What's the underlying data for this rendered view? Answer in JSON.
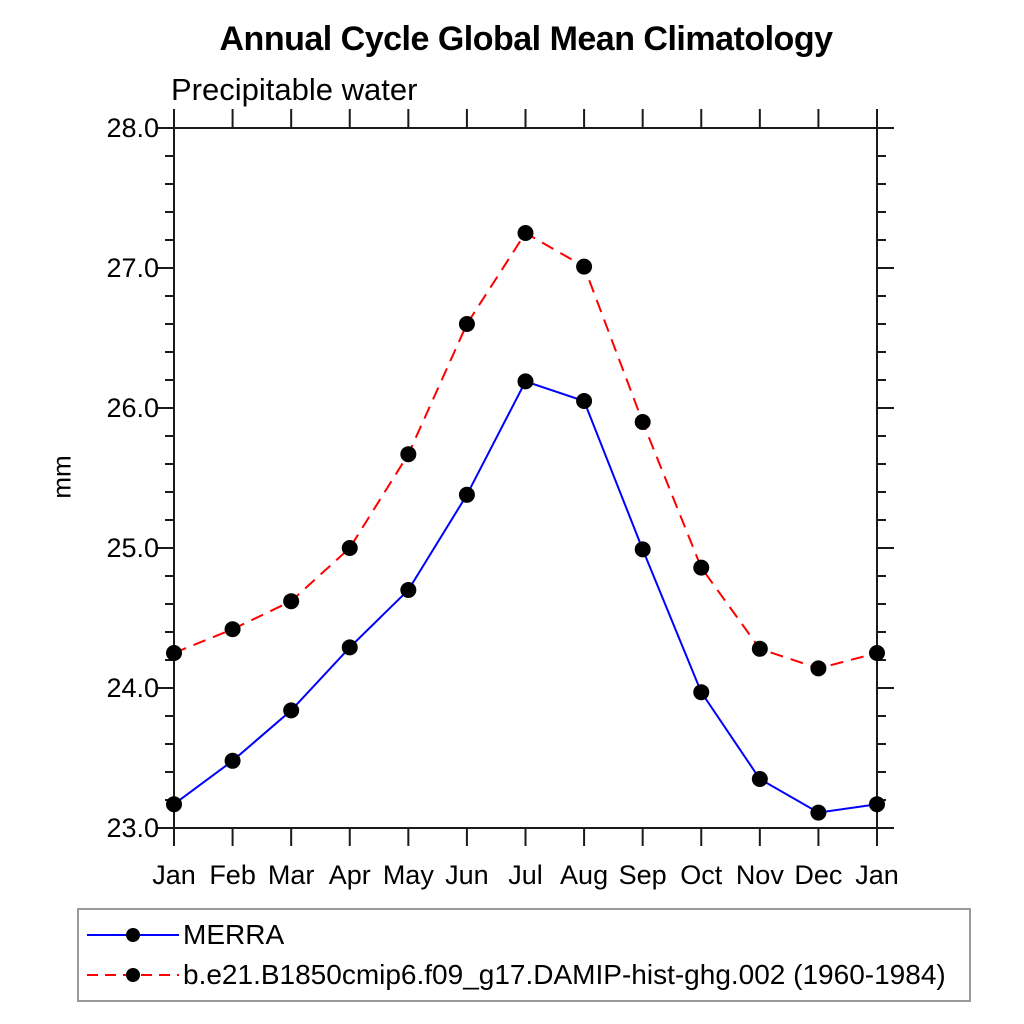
{
  "chart_data": {
    "type": "line",
    "title": "Annual Cycle Global Mean Climatology",
    "subtitle": "Precipitable water",
    "ylabel": "mm",
    "xlabel": "",
    "x_categories": [
      "Jan",
      "Feb",
      "Mar",
      "Apr",
      "May",
      "Jun",
      "Jul",
      "Aug",
      "Sep",
      "Oct",
      "Nov",
      "Dec",
      "Jan"
    ],
    "ylim": [
      23.0,
      28.0
    ],
    "ytick_labels": [
      "23.0",
      "24.0",
      "25.0",
      "26.0",
      "27.0",
      "28.0"
    ],
    "ytick_major_values": [
      23.0,
      24.0,
      25.0,
      26.0,
      27.0,
      28.0
    ],
    "ytick_minor_step": 0.2,
    "grid": false,
    "legend_position": "bottom",
    "axis_color": "#1a1a1a",
    "marker_color": "#000000",
    "series": [
      {
        "name": "MERRA",
        "color": "#0000ff",
        "style": "solid",
        "marker": "circle",
        "values": [
          23.17,
          23.48,
          23.84,
          24.29,
          24.7,
          25.38,
          26.19,
          26.05,
          24.99,
          23.97,
          23.35,
          23.11,
          23.17
        ]
      },
      {
        "name": "b.e21.B1850cmip6.f09_g17.DAMIP-hist-ghg.002 (1960-1984)",
        "color": "#ff0000",
        "style": "dashed",
        "marker": "circle",
        "values": [
          24.25,
          24.42,
          24.62,
          25.0,
          25.67,
          26.6,
          27.25,
          27.01,
          25.9,
          24.86,
          24.28,
          24.14,
          24.25
        ]
      }
    ]
  }
}
